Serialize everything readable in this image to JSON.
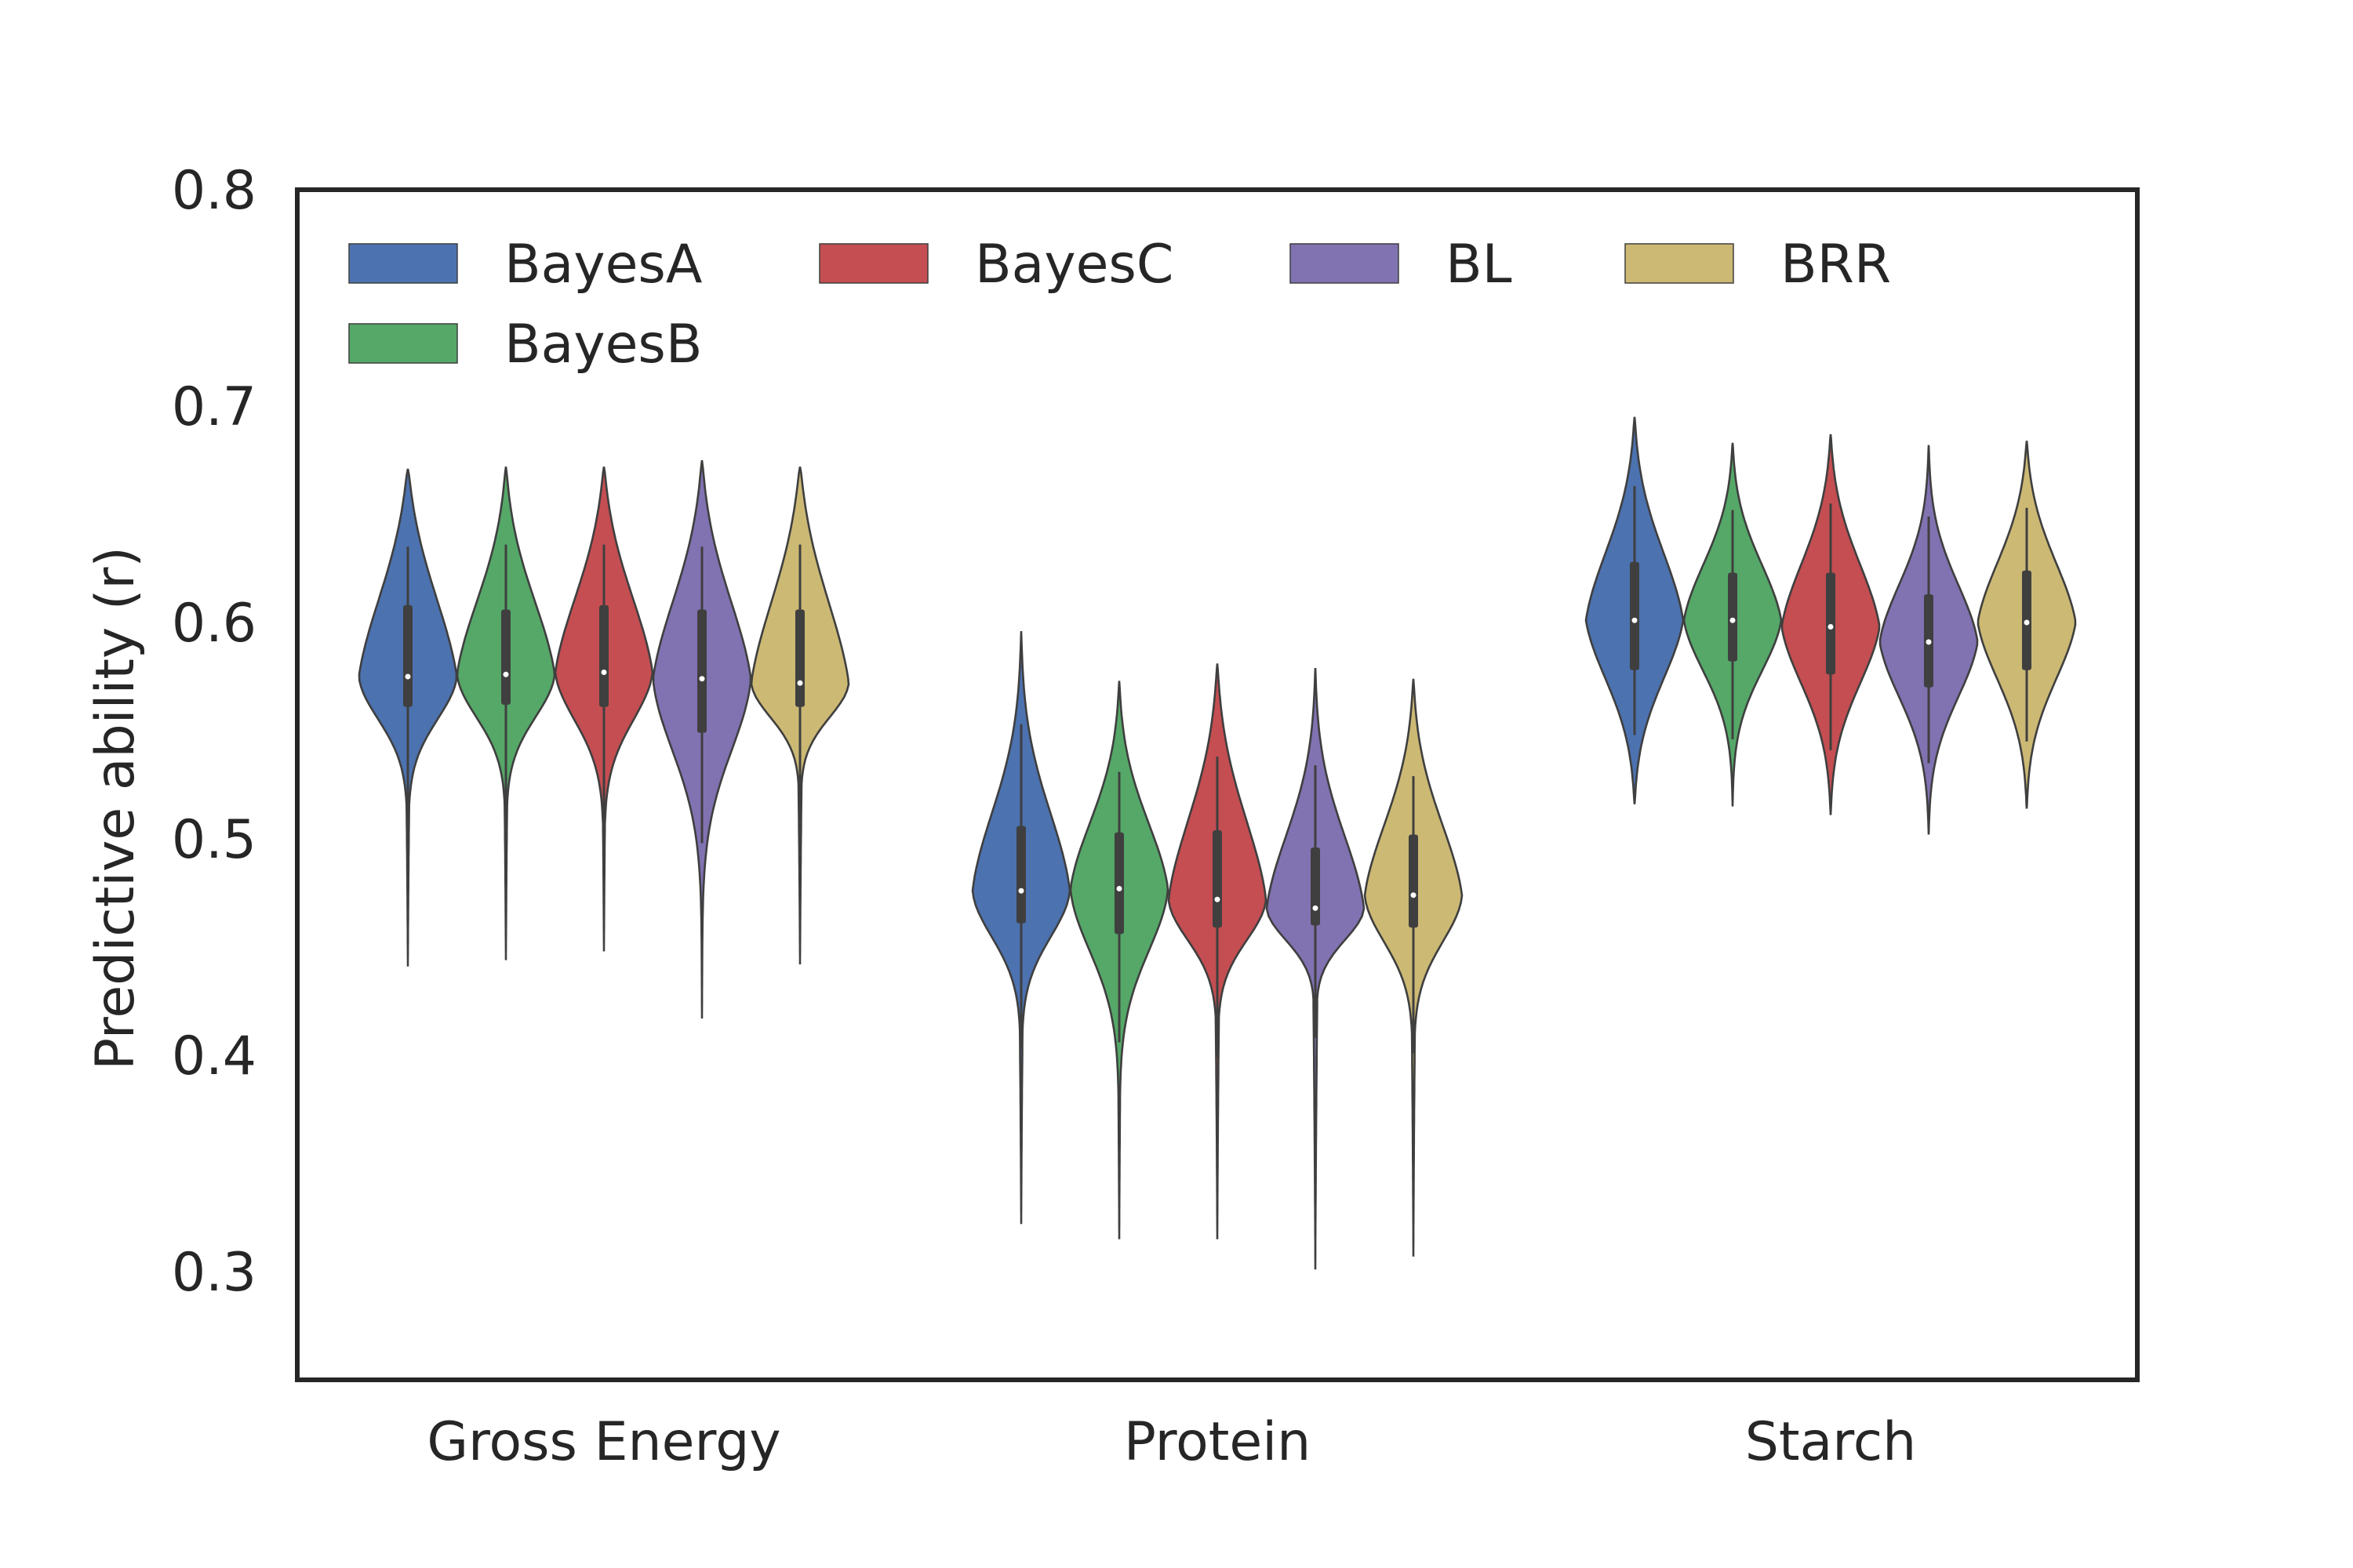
{
  "chart_data": {
    "type": "violin",
    "title": "",
    "xlabel": "",
    "ylabel": "Predictive ability (r)",
    "ylim": [
      0.25,
      0.8
    ],
    "yticks": [
      "0.3",
      "0.4",
      "0.5",
      "0.6",
      "0.7",
      "0.8"
    ],
    "grid": false,
    "legend_position": "top-left",
    "categories": [
      "Gross Energy",
      "Protein",
      "Starch"
    ],
    "series": [
      {
        "name": "BayesA",
        "color": "#4C72B0",
        "stats": [
          {
            "min": 0.441,
            "max": 0.671,
            "whisker_low": 0.508,
            "whisker_high": 0.635,
            "q1": 0.561,
            "median": 0.575,
            "q3": 0.608,
            "mode": 0.575
          },
          {
            "min": 0.322,
            "max": 0.596,
            "whisker_low": 0.403,
            "whisker_high": 0.553,
            "q1": 0.461,
            "median": 0.476,
            "q3": 0.506,
            "mode": 0.476
          },
          {
            "min": 0.516,
            "max": 0.695,
            "whisker_low": 0.548,
            "whisker_high": 0.663,
            "q1": 0.578,
            "median": 0.601,
            "q3": 0.628,
            "mode": 0.601
          }
        ]
      },
      {
        "name": "BayesB",
        "color": "#55A868",
        "stats": [
          {
            "min": 0.444,
            "max": 0.672,
            "whisker_low": 0.507,
            "whisker_high": 0.636,
            "q1": 0.562,
            "median": 0.576,
            "q3": 0.606,
            "mode": 0.576
          },
          {
            "min": 0.315,
            "max": 0.573,
            "whisker_low": 0.406,
            "whisker_high": 0.531,
            "q1": 0.456,
            "median": 0.477,
            "q3": 0.503,
            "mode": 0.477
          },
          {
            "min": 0.515,
            "max": 0.683,
            "whisker_low": 0.546,
            "whisker_high": 0.652,
            "q1": 0.582,
            "median": 0.601,
            "q3": 0.623,
            "mode": 0.601
          }
        ]
      },
      {
        "name": "BayesC",
        "color": "#C44E52",
        "stats": [
          {
            "min": 0.448,
            "max": 0.672,
            "whisker_low": 0.499,
            "whisker_high": 0.636,
            "q1": 0.561,
            "median": 0.577,
            "q3": 0.608,
            "mode": 0.577
          },
          {
            "min": 0.315,
            "max": 0.581,
            "whisker_low": 0.399,
            "whisker_high": 0.538,
            "q1": 0.459,
            "median": 0.472,
            "q3": 0.504,
            "mode": 0.472
          },
          {
            "min": 0.511,
            "max": 0.687,
            "whisker_low": 0.541,
            "whisker_high": 0.655,
            "q1": 0.576,
            "median": 0.598,
            "q3": 0.623,
            "mode": 0.598
          }
        ]
      },
      {
        "name": "BL",
        "color": "#8172B2",
        "stats": [
          {
            "min": 0.417,
            "max": 0.675,
            "whisker_low": 0.498,
            "whisker_high": 0.635,
            "q1": 0.549,
            "median": 0.574,
            "q3": 0.606,
            "mode": 0.574
          },
          {
            "min": 0.301,
            "max": 0.579,
            "whisker_low": 0.408,
            "whisker_high": 0.534,
            "q1": 0.46,
            "median": 0.468,
            "q3": 0.496,
            "mode": 0.468
          },
          {
            "min": 0.502,
            "max": 0.682,
            "whisker_low": 0.535,
            "whisker_high": 0.649,
            "q1": 0.57,
            "median": 0.591,
            "q3": 0.613,
            "mode": 0.591
          }
        ]
      },
      {
        "name": "BRR",
        "color": "#CCB974",
        "stats": [
          {
            "min": 0.442,
            "max": 0.672,
            "whisker_low": 0.504,
            "whisker_high": 0.636,
            "q1": 0.561,
            "median": 0.572,
            "q3": 0.606,
            "mode": 0.572
          },
          {
            "min": 0.307,
            "max": 0.574,
            "whisker_low": 0.401,
            "whisker_high": 0.529,
            "q1": 0.459,
            "median": 0.474,
            "q3": 0.502,
            "mode": 0.474
          },
          {
            "min": 0.514,
            "max": 0.684,
            "whisker_low": 0.545,
            "whisker_high": 0.653,
            "q1": 0.578,
            "median": 0.6,
            "q3": 0.624,
            "mode": 0.6
          }
        ]
      }
    ]
  }
}
